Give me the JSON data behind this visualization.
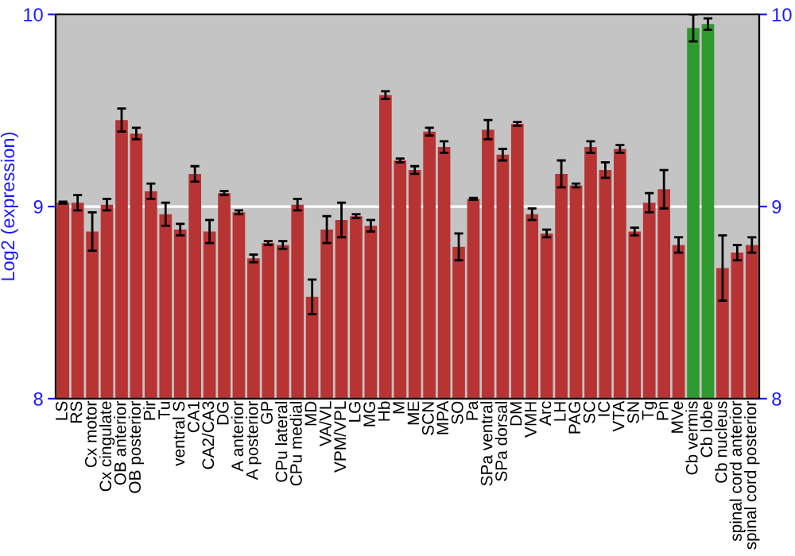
{
  "chart_data": {
    "type": "bar",
    "ylabel": "Log2 (expression)",
    "categories": [
      "LS",
      "RS",
      "Cx motor",
      "Cx cingulate",
      "OB anterior",
      "OB posterior",
      "Pir",
      "Tu",
      "ventral S",
      "CA1",
      "CA2/CA3",
      "DG",
      "A anterior",
      "A posterior",
      "GP",
      "CPu lateral",
      "CPu medial",
      "MD",
      "VA/VL",
      "VPM/VPL",
      "LG",
      "MG",
      "Hb",
      "M",
      "ME",
      "SCN",
      "MPA",
      "SO",
      "Pa",
      "SPa ventral",
      "SPa dorsal",
      "DM",
      "VMH",
      "Arc",
      "LH",
      "PAG",
      "SC",
      "IC",
      "VTA",
      "SN",
      "Tg",
      "Pn",
      "MVe",
      "Cb vermis",
      "Cb lobe",
      "Cb nucleus",
      "spinal cord anterior",
      "spinal cord posterior"
    ],
    "values": [
      9.02,
      9.02,
      8.87,
      9.01,
      9.45,
      9.38,
      9.08,
      8.96,
      8.88,
      9.17,
      8.87,
      9.07,
      8.97,
      8.73,
      8.81,
      8.8,
      9.01,
      8.53,
      8.88,
      8.93,
      8.95,
      8.9,
      9.58,
      9.24,
      9.19,
      9.39,
      9.31,
      8.79,
      9.04,
      9.4,
      9.27,
      9.43,
      8.96,
      8.86,
      9.17,
      9.11,
      9.31,
      9.19,
      9.3,
      8.87,
      9.02,
      9.09,
      8.8,
      9.93,
      9.95,
      8.68,
      8.76,
      8.8
    ],
    "errors": [
      0.005,
      0.04,
      0.1,
      0.03,
      0.06,
      0.03,
      0.04,
      0.06,
      0.03,
      0.04,
      0.06,
      0.01,
      0.01,
      0.02,
      0.01,
      0.02,
      0.03,
      0.09,
      0.07,
      0.09,
      0.01,
      0.03,
      0.02,
      0.01,
      0.02,
      0.02,
      0.03,
      0.07,
      0.005,
      0.05,
      0.03,
      0.01,
      0.03,
      0.02,
      0.07,
      0.01,
      0.03,
      0.04,
      0.02,
      0.02,
      0.05,
      0.1,
      0.04,
      0.07,
      0.03,
      0.17,
      0.04,
      0.04
    ],
    "colors": [
      "#b83333",
      "#b83333",
      "#b83333",
      "#b83333",
      "#b83333",
      "#b83333",
      "#b83333",
      "#b83333",
      "#b83333",
      "#b83333",
      "#b83333",
      "#b83333",
      "#b83333",
      "#b83333",
      "#b83333",
      "#b83333",
      "#b83333",
      "#b83333",
      "#b83333",
      "#b83333",
      "#b83333",
      "#b83333",
      "#b83333",
      "#b83333",
      "#b83333",
      "#b83333",
      "#b83333",
      "#b83333",
      "#b83333",
      "#b83333",
      "#b83333",
      "#b83333",
      "#b83333",
      "#b83333",
      "#b83333",
      "#b83333",
      "#b83333",
      "#b83333",
      "#b83333",
      "#b83333",
      "#b83333",
      "#b83333",
      "#b83333",
      "#2f9a2f",
      "#2f9a2f",
      "#b83333",
      "#b83333",
      "#b83333"
    ],
    "ylim": [
      8,
      10
    ],
    "yticks": [
      8,
      9,
      10
    ],
    "y2lim": [
      8,
      10
    ],
    "y2ticks": [
      8,
      9,
      10
    ],
    "grid": "y"
  }
}
